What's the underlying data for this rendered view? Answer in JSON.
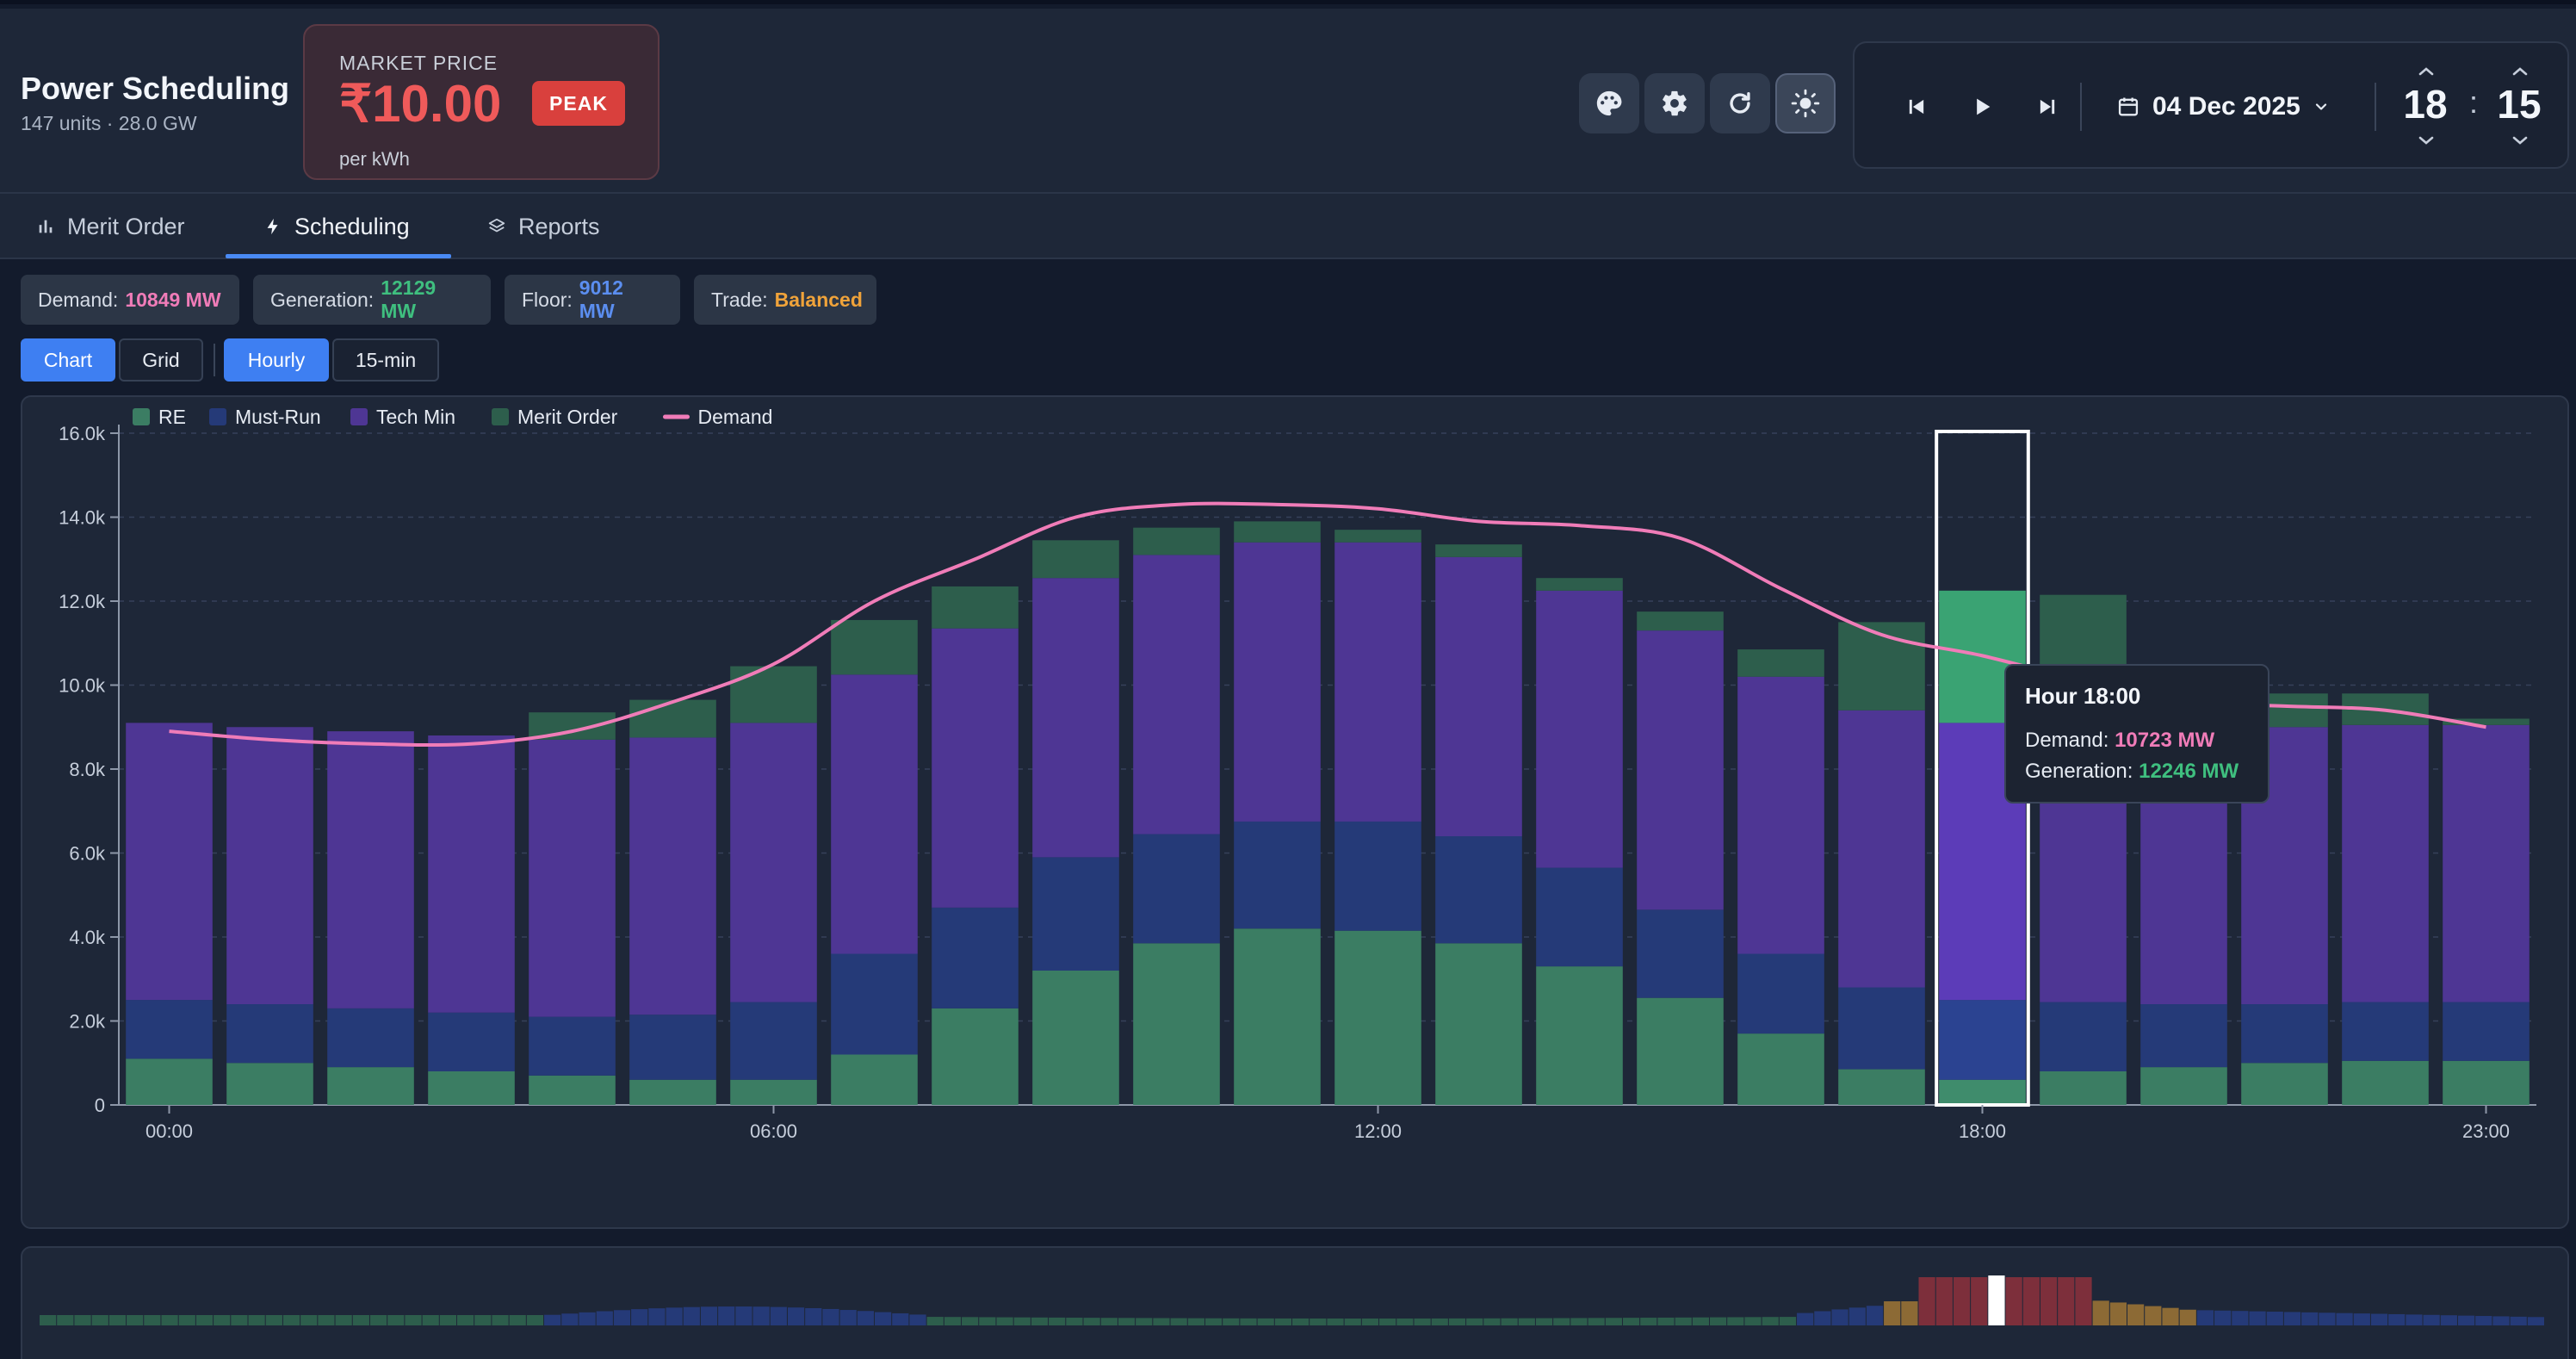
{
  "header": {
    "title": "Power Scheduling",
    "subtitle": "147 units · 28.0 GW",
    "market": {
      "label": "MARKET PRICE",
      "price": "₹10.00",
      "unit": "per kWh",
      "badge": "PEAK",
      "price_color": "#ef5a5a",
      "badge_color": "#d9403d"
    },
    "toolbar_icons": [
      "palette-icon",
      "gear-icon",
      "refresh-icon",
      "sun-icon"
    ],
    "player": {
      "date": "04 Dec 2025",
      "hour": "18",
      "minute": "15",
      "colon": ":"
    }
  },
  "tabs": [
    {
      "label": "Merit Order",
      "icon": "bar-chart-icon"
    },
    {
      "label": "Scheduling",
      "icon": "bolt-icon",
      "active": true
    },
    {
      "label": "Reports",
      "icon": "layers-icon"
    }
  ],
  "stats": {
    "demand": {
      "label": "Demand:",
      "value": "10849 MW",
      "color": "#f07cb8"
    },
    "generation": {
      "label": "Generation:",
      "value": "12129 MW",
      "color": "#3fbf7f"
    },
    "floor": {
      "label": "Floor:",
      "value": "9012 MW",
      "color": "#5b8ef0"
    },
    "trade": {
      "label": "Trade:",
      "value": "Balanced",
      "color": "#f0a33a"
    }
  },
  "view_toggle": {
    "chart": "Chart",
    "grid": "Grid",
    "active": "Chart"
  },
  "interval_toggle": {
    "hourly": "Hourly",
    "fifteen": "15-min",
    "active": "Hourly"
  },
  "tooltip": {
    "title": "Hour 18:00",
    "demand_label": "Demand:",
    "demand_value": "10723 MW",
    "gen_label": "Generation:",
    "gen_value": "12246 MW"
  },
  "chart_data": {
    "type": "bar",
    "stacked": true,
    "x": [
      "00:00",
      "01:00",
      "02:00",
      "03:00",
      "04:00",
      "05:00",
      "06:00",
      "07:00",
      "08:00",
      "09:00",
      "10:00",
      "11:00",
      "12:00",
      "13:00",
      "14:00",
      "15:00",
      "16:00",
      "17:00",
      "18:00",
      "19:00",
      "20:00",
      "21:00",
      "22:00",
      "23:00"
    ],
    "x_tick_labels": [
      "00:00",
      "06:00",
      "12:00",
      "18:00",
      "23:00"
    ],
    "y_tick_labels": [
      "0",
      "2.0k",
      "4.0k",
      "6.0k",
      "8.0k",
      "10.0k",
      "12.0k",
      "14.0k",
      "16.0k"
    ],
    "ylim": [
      0,
      16000
    ],
    "grid": true,
    "legend": "top-left",
    "series": [
      {
        "name": "RE",
        "color": "#3b7d63",
        "values": [
          1100,
          1000,
          900,
          800,
          700,
          600,
          600,
          1200,
          2300,
          3200,
          3850,
          4200,
          4150,
          3850,
          3300,
          2550,
          1700,
          850,
          600,
          800,
          900,
          1000,
          1050,
          1050
        ]
      },
      {
        "name": "Must-Run",
        "color": "#253a78",
        "values": [
          1400,
          1400,
          1400,
          1400,
          1400,
          1550,
          1850,
          2400,
          2400,
          2700,
          2600,
          2550,
          2600,
          2550,
          2350,
          2100,
          1900,
          1950,
          1900,
          1650,
          1500,
          1400,
          1400,
          1400
        ]
      },
      {
        "name": "Tech Min",
        "color": "#4e3694",
        "values": [
          6600,
          6600,
          6600,
          6600,
          6600,
          6600,
          6650,
          6650,
          6650,
          6650,
          6650,
          6650,
          6650,
          6650,
          6600,
          6650,
          6600,
          6600,
          6600,
          6600,
          6600,
          6600,
          6600,
          6600
        ]
      },
      {
        "name": "Merit Order",
        "color": "#2d5e4c",
        "values": [
          0,
          0,
          0,
          0,
          650,
          900,
          1350,
          1300,
          1000,
          900,
          650,
          500,
          300,
          300,
          300,
          450,
          650,
          2100,
          3150,
          3100,
          0,
          800,
          750,
          150
        ]
      }
    ],
    "line_series": {
      "name": "Demand",
      "color": "#f07cb8",
      "values": [
        8900,
        8700,
        8600,
        8600,
        8900,
        9600,
        10500,
        12000,
        13000,
        14000,
        14300,
        14300,
        14200,
        13900,
        13800,
        13500,
        12300,
        11200,
        10700,
        10100,
        9600,
        9500,
        9400,
        9000
      ]
    },
    "highlight": "18:00"
  },
  "overview": {
    "bars": 144
  }
}
